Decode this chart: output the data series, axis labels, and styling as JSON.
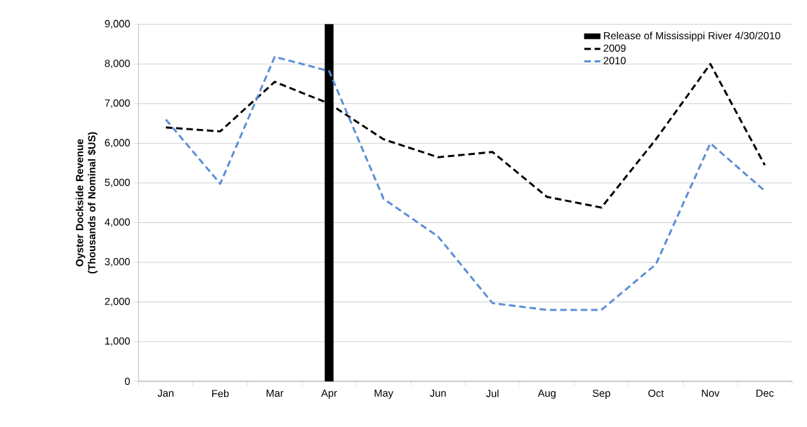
{
  "chart_data": {
    "type": "line",
    "ylabel": "Oyster Dockside Revenue (Thousands of Nominal $US)",
    "categories": [
      "Jan",
      "Feb",
      "Mar",
      "Apr",
      "May",
      "Jun",
      "Jul",
      "Aug",
      "Sep",
      "Oct",
      "Nov",
      "Dec"
    ],
    "series": [
      {
        "name": "Release of Mississippi River 4/30/2010",
        "type": "bar",
        "color": "#000000",
        "values": [
          null,
          null,
          null,
          9000,
          null,
          null,
          null,
          null,
          null,
          null,
          null,
          null
        ]
      },
      {
        "name": "2009",
        "color": "#000000",
        "values": [
          6400,
          6300,
          7550,
          7000,
          6100,
          5650,
          5780,
          4650,
          4380,
          6100,
          8000,
          5450
        ]
      },
      {
        "name": "2010",
        "color": "#5b8fd6",
        "values": [
          6600,
          4980,
          8180,
          7820,
          4600,
          3650,
          1970,
          1800,
          1800,
          2950,
          6000,
          4800
        ]
      }
    ],
    "ylim": [
      0,
      9000
    ],
    "yticks": [
      0,
      {
        "value": 1000,
        "label": "1,000"
      },
      {
        "value": 2000,
        "label": "2,000"
      },
      {
        "value": 3000,
        "label": "3,000"
      },
      {
        "value": 4000,
        "label": "4,000"
      },
      {
        "value": 5000,
        "label": "5,000"
      },
      {
        "value": 6000,
        "label": "6,000"
      },
      {
        "value": 7000,
        "label": "7,000"
      },
      {
        "value": 8000,
        "label": "8,000"
      },
      {
        "value": 9000,
        "label": "9,000"
      }
    ],
    "grid": "y",
    "legend": "top right",
    "line_style": "dashed",
    "marker": "none"
  }
}
